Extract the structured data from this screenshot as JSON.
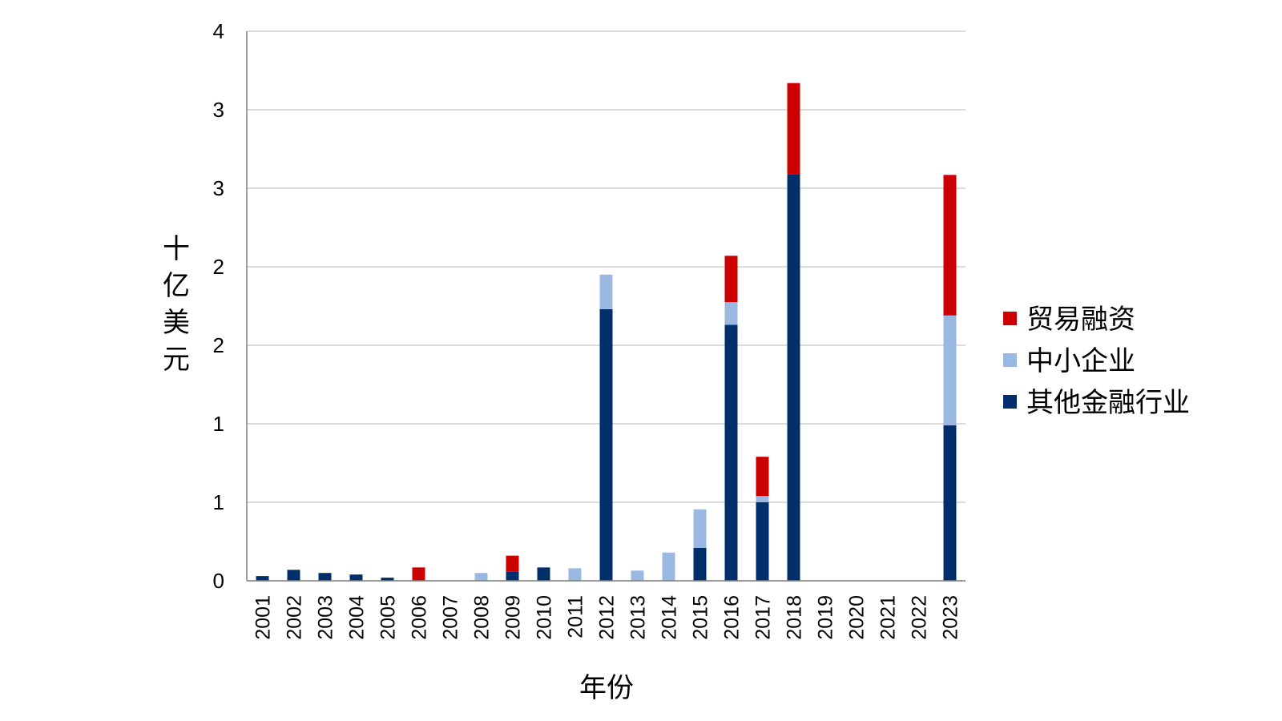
{
  "chart_data": {
    "type": "bar",
    "stacked": true,
    "title": "",
    "xlabel": "年份",
    "ylabel": "十亿美元",
    "y_tick_labels": [
      "0",
      "1",
      "1",
      "2",
      "2",
      "3",
      "3",
      "4"
    ],
    "ylim": [
      0,
      3.5
    ],
    "grid": true,
    "legend_position": "right",
    "categories": [
      "2001",
      "2002",
      "2003",
      "2004",
      "2005",
      "2006",
      "2007",
      "2008",
      "2009",
      "2010",
      "2011",
      "2012",
      "2013",
      "2014",
      "2015",
      "2016",
      "2017",
      "2018",
      "2019",
      "2020",
      "2021",
      "2022",
      "2023"
    ],
    "series": [
      {
        "name": "其他金融行业",
        "color": "#002f6c",
        "values": [
          0.03,
          0.07,
          0.05,
          0.04,
          0.02,
          0,
          0,
          0,
          0.06,
          0.085,
          0,
          1.73,
          0,
          0,
          0.21,
          1.63,
          0.5,
          2.59,
          0,
          0,
          0,
          0,
          0.99
        ]
      },
      {
        "name": "中小企业",
        "color": "#9bb8e3",
        "values": [
          0,
          0,
          0,
          0,
          0,
          0,
          0,
          0.05,
          0,
          0,
          0.08,
          0.22,
          0.065,
          0.18,
          0.245,
          0.145,
          0.04,
          0,
          0,
          0,
          0,
          0,
          0.7
        ]
      },
      {
        "name": "贸易融资",
        "color": "#cc0000",
        "values": [
          0,
          0,
          0,
          0,
          0,
          0.085,
          0,
          0,
          0.1,
          0,
          0,
          0,
          0,
          0,
          0,
          0.295,
          0.25,
          0.58,
          0,
          0,
          0,
          0,
          0.895
        ]
      }
    ],
    "legend_order": [
      "贸易融资",
      "中小企业",
      "其他金融行业"
    ]
  }
}
